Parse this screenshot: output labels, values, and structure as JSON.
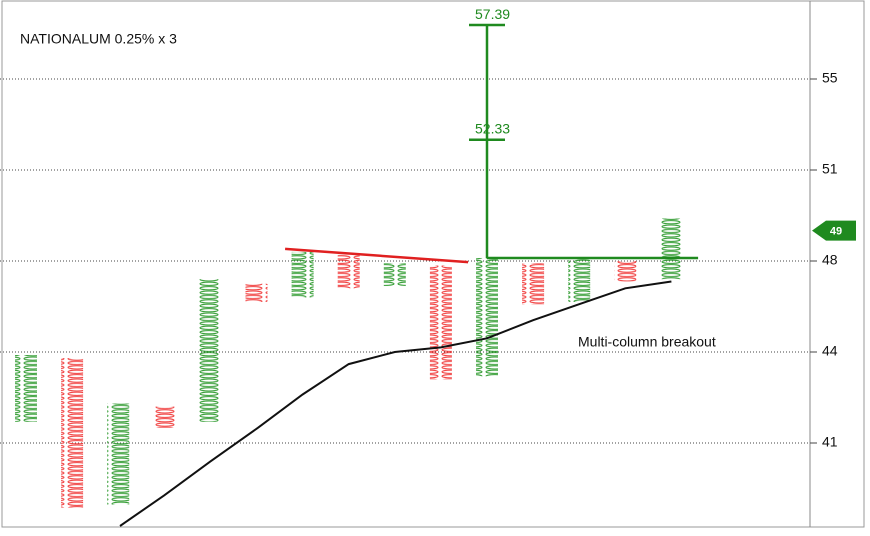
{
  "chart_data": {
    "type": "pnf",
    "title": "NATIONALUM 0.25% x 3",
    "annotation": "Multi-column breakout",
    "x_color": "#2e9a2e",
    "o_color": "#f03a3a",
    "columns": [
      {
        "kind": "X",
        "high": 43.9,
        "low": 41.7
      },
      {
        "kind": "O",
        "high": 43.8,
        "low": 38.9
      },
      {
        "kind": "X",
        "high": 42.3,
        "low": 39.0
      },
      {
        "kind": "O",
        "high": 42.2,
        "low": 41.5
      },
      {
        "kind": "X",
        "high": 47.2,
        "low": 41.7
      },
      {
        "kind": "O",
        "high": 47.0,
        "low": 46.2
      },
      {
        "kind": "X",
        "high": 48.3,
        "low": 46.4
      },
      {
        "kind": "O",
        "high": 48.2,
        "low": 46.8
      },
      {
        "kind": "X",
        "high": 47.9,
        "low": 46.9
      },
      {
        "kind": "O",
        "high": 47.8,
        "low": 43.1
      },
      {
        "kind": "X",
        "high": 48.1,
        "low": 43.2
      },
      {
        "kind": "O",
        "high": 47.9,
        "low": 46.1
      },
      {
        "kind": "X",
        "high": 48.1,
        "low": 46.2
      },
      {
        "kind": "O",
        "high": 48.0,
        "low": 47.1
      },
      {
        "kind": "X",
        "high": 49.4,
        "low": 47.2
      }
    ],
    "trend_line": {
      "color": "#111111",
      "x": [
        2.04,
        3,
        4,
        5.03,
        6,
        7,
        8,
        9,
        10,
        11,
        12,
        13,
        14
      ],
      "values": [
        38.3,
        39.3,
        40.4,
        41.5,
        42.6,
        43.6,
        44.0,
        44.2,
        44.6,
        45.4,
        46.1,
        46.8,
        47.1
      ]
    },
    "resistance_line": {
      "color": "#e02020",
      "x": [
        5.62,
        9.59
      ],
      "values": [
        48.4,
        47.95
      ]
    },
    "breakout_line": {
      "color": "#1f8a1f",
      "x": [
        10,
        14.58
      ],
      "values": [
        48.1,
        48.1
      ]
    },
    "targets": [
      57.39,
      52.33
    ],
    "last_price": 49,
    "ylim": [
      38.3,
      58.5
    ],
    "yticks": [
      41,
      44,
      48,
      51,
      55
    ],
    "grid": true
  }
}
